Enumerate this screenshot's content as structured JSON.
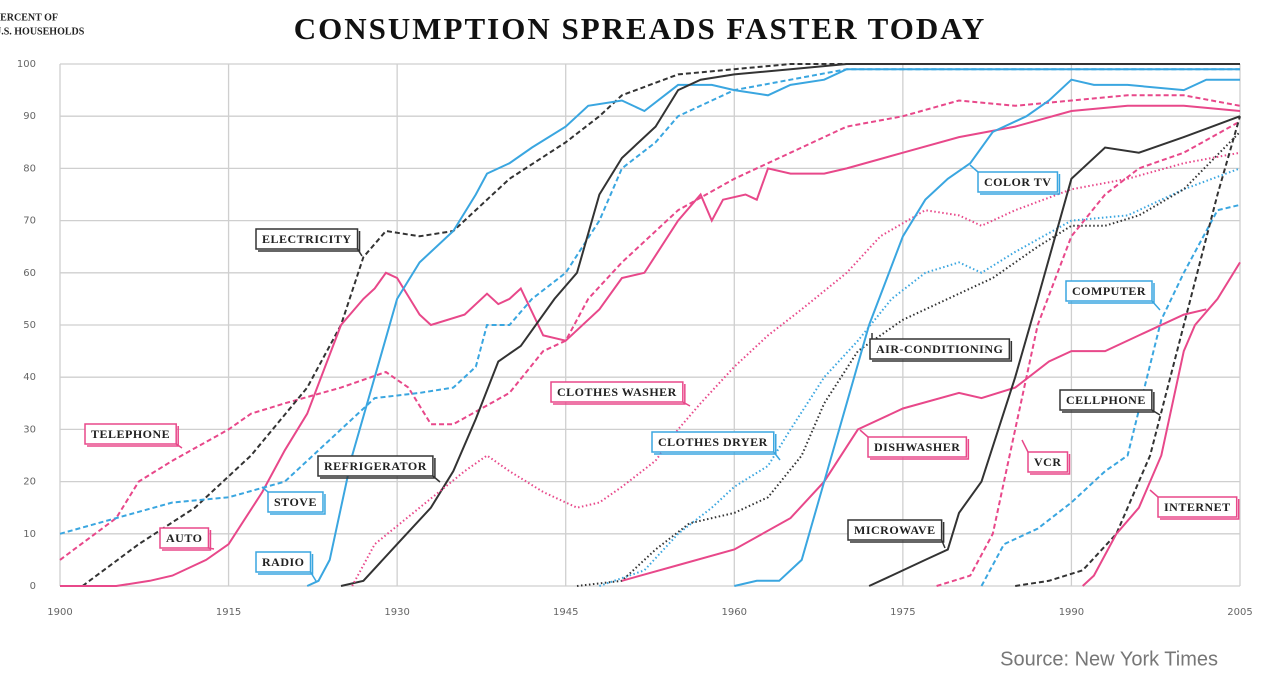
{
  "chart_data": {
    "type": "line",
    "title": "CONSUMPTION SPREADS FASTER TODAY",
    "ylabel": [
      "PERCENT OF",
      "U.S. HOUSEHOLDS"
    ],
    "source": "Source: New York Times",
    "xlim": [
      1900,
      2005
    ],
    "xticks": [
      1900,
      1915,
      1930,
      1945,
      1960,
      1975,
      1990,
      2005
    ],
    "ylim": [
      0,
      100
    ],
    "yticks": [
      0,
      10,
      20,
      30,
      40,
      50,
      60,
      70,
      80,
      90,
      100
    ],
    "grid": true,
    "series": [
      {
        "name": "TELEPHONE",
        "color": "#e8488a",
        "style": "dashed",
        "x": [
          1900,
          1905,
          1907,
          1910,
          1915,
          1917,
          1920,
          1925,
          1929,
          1931,
          1933,
          1935,
          1940,
          1943,
          1945,
          1947,
          1950,
          1955,
          1960,
          1965,
          1970,
          1975,
          1980,
          1985,
          1990,
          1995,
          2000,
          2005
        ],
        "values": [
          5,
          13,
          20,
          24,
          30,
          33,
          35,
          38,
          41,
          38,
          31,
          31,
          37,
          45,
          47,
          55,
          62,
          72,
          78,
          83,
          88,
          90,
          93,
          92,
          93,
          94,
          94,
          92
        ]
      },
      {
        "name": "ELECTRICITY",
        "color": "#333333",
        "style": "dashed",
        "x": [
          1902,
          1907,
          1912,
          1917,
          1922,
          1925,
          1927,
          1929,
          1932,
          1935,
          1940,
          1945,
          1948,
          1950,
          1955,
          1960,
          1965,
          1970,
          2005
        ],
        "values": [
          0,
          8,
          15,
          25,
          38,
          50,
          63,
          68,
          67,
          68,
          78,
          85,
          90,
          94,
          98,
          99,
          100,
          100,
          100
        ]
      },
      {
        "name": "AUTO",
        "color": "#e8488a",
        "style": "solid",
        "x": [
          1900,
          1905,
          1908,
          1910,
          1913,
          1915,
          1918,
          1920,
          1922,
          1925,
          1927,
          1928,
          1929,
          1930,
          1932,
          1933,
          1936,
          1938,
          1939,
          1940,
          1941,
          1943,
          1945,
          1948,
          1950,
          1952,
          1955,
          1957,
          1958,
          1959,
          1961,
          1962,
          1963,
          1965,
          1968,
          1970,
          1975,
          1980,
          1985,
          1990,
          1995,
          2000,
          2005
        ],
        "values": [
          0,
          0,
          1,
          2,
          5,
          8,
          18,
          26,
          33,
          50,
          55,
          57,
          60,
          59,
          52,
          50,
          52,
          56,
          54,
          55,
          57,
          48,
          47,
          53,
          59,
          60,
          70,
          75,
          70,
          74,
          75,
          74,
          80,
          79,
          79,
          80,
          83,
          86,
          88,
          91,
          92,
          92,
          91
        ]
      },
      {
        "name": "RADIO",
        "color": "#3aa6e0",
        "style": "solid",
        "x": [
          1922,
          1923,
          1924,
          1926,
          1928,
          1930,
          1932,
          1935,
          1937,
          1938,
          1940,
          1942,
          1945,
          1947,
          1950,
          1952,
          1955,
          1958,
          1960,
          1963,
          1965,
          1968,
          1970,
          1980,
          1990,
          2005
        ],
        "values": [
          0,
          1,
          5,
          25,
          40,
          55,
          62,
          68,
          75,
          79,
          81,
          84,
          88,
          92,
          93,
          91,
          96,
          96,
          95,
          94,
          96,
          97,
          99,
          99,
          99,
          99
        ]
      },
      {
        "name": "STOVE",
        "color": "#3aa6e0",
        "style": "dashed",
        "x": [
          1900,
          1905,
          1910,
          1915,
          1920,
          1925,
          1928,
          1932,
          1935,
          1937,
          1938,
          1940,
          1942,
          1945,
          1948,
          1950,
          1953,
          1955,
          1960,
          1965,
          1970,
          2005
        ],
        "values": [
          10,
          13,
          16,
          17,
          20,
          30,
          36,
          37,
          38,
          42,
          50,
          50,
          55,
          60,
          70,
          80,
          85,
          90,
          95,
          97,
          99,
          99
        ]
      },
      {
        "name": "REFRIGERATOR",
        "color": "#333333",
        "style": "solid",
        "x": [
          1925,
          1927,
          1930,
          1933,
          1935,
          1937,
          1939,
          1941,
          1944,
          1946,
          1948,
          1950,
          1953,
          1955,
          1957,
          1960,
          1965,
          1970,
          2005
        ],
        "values": [
          0,
          1,
          8,
          15,
          22,
          32,
          43,
          46,
          55,
          60,
          75,
          82,
          88,
          95,
          97,
          98,
          99,
          100,
          100
        ]
      },
      {
        "name": "CLOTHES WASHER",
        "color": "#e8488a",
        "style": "dotted",
        "x": [
          1926,
          1928,
          1932,
          1936,
          1938,
          1940,
          1943,
          1946,
          1948,
          1950,
          1953,
          1955,
          1957,
          1960,
          1963,
          1966,
          1970,
          1973,
          1977,
          1980,
          1982,
          1985,
          1990,
          1995,
          2000,
          2005
        ],
        "values": [
          0,
          8,
          15,
          22,
          25,
          22,
          18,
          15,
          16,
          19,
          24,
          30,
          35,
          42,
          48,
          53,
          60,
          67,
          72,
          71,
          69,
          72,
          76,
          78,
          81,
          83
        ]
      },
      {
        "name": "CLOTHES DRYER",
        "color": "#3aa6e0",
        "style": "dotted",
        "x": [
          1948,
          1952,
          1955,
          1958,
          1960,
          1963,
          1965,
          1968,
          1971,
          1974,
          1977,
          1980,
          1982,
          1985,
          1990,
          1995,
          2000,
          2005
        ],
        "values": [
          0,
          3,
          10,
          15,
          19,
          23,
          30,
          40,
          47,
          55,
          60,
          62,
          60,
          64,
          70,
          71,
          76,
          80
        ]
      },
      {
        "name": "AIR-CONDITIONING",
        "color": "#333333",
        "style": "dotted",
        "x": [
          1946,
          1950,
          1953,
          1956,
          1960,
          1963,
          1966,
          1968,
          1971,
          1975,
          1980,
          1983,
          1987,
          1990,
          1993,
          1996,
          2000,
          2005
        ],
        "values": [
          0,
          1,
          7,
          12,
          14,
          17,
          25,
          35,
          45,
          51,
          56,
          59,
          65,
          69,
          69,
          71,
          76,
          87
        ]
      },
      {
        "name": "DISHWASHER",
        "color": "#e8488a",
        "style": "solid",
        "x": [
          1950,
          1955,
          1960,
          1965,
          1968,
          1971,
          1975,
          1980,
          1982,
          1985,
          1988,
          1990,
          1993,
          1996,
          2000,
          2002
        ],
        "values": [
          1,
          4,
          7,
          13,
          20,
          30,
          34,
          37,
          36,
          38,
          43,
          45,
          45,
          48,
          52,
          53
        ]
      },
      {
        "name": "COLOR TV",
        "color": "#3aa6e0",
        "style": "solid",
        "x": [
          1960,
          1962,
          1964,
          1966,
          1968,
          1970,
          1972,
          1975,
          1977,
          1979,
          1981,
          1983,
          1986,
          1988,
          1990,
          1992,
          1995,
          2000,
          2002,
          2005
        ],
        "values": [
          0,
          1,
          1,
          5,
          20,
          35,
          50,
          67,
          74,
          78,
          81,
          87,
          90,
          93,
          97,
          96,
          96,
          95,
          97,
          97
        ]
      },
      {
        "name": "MICROWAVE",
        "color": "#333333",
        "style": "solid",
        "x": [
          1972,
          1974,
          1977,
          1979,
          1980,
          1982,
          1985,
          1987,
          1990,
          1993,
          1996,
          2000,
          2005
        ],
        "values": [
          0,
          2,
          5,
          7,
          14,
          20,
          40,
          55,
          78,
          84,
          83,
          86,
          90
        ]
      },
      {
        "name": "VCR",
        "color": "#e8488a",
        "style": "dashed",
        "x": [
          1978,
          1981,
          1983,
          1985,
          1987,
          1990,
          1993,
          1996,
          2000,
          2005
        ],
        "values": [
          0,
          2,
          10,
          30,
          50,
          67,
          75,
          80,
          83,
          89
        ]
      },
      {
        "name": "COMPUTER",
        "color": "#3aa6e0",
        "style": "dashed",
        "x": [
          1982,
          1984,
          1987,
          1990,
          1993,
          1995,
          1998,
          2000,
          2003,
          2005
        ],
        "values": [
          0,
          8,
          11,
          16,
          22,
          25,
          51,
          60,
          72,
          73
        ]
      },
      {
        "name": "CELLPHONE",
        "color": "#333333",
        "style": "dashed",
        "x": [
          1985,
          1988,
          1991,
          1994,
          1997,
          2000,
          2003,
          2005
        ],
        "values": [
          0,
          1,
          3,
          10,
          25,
          50,
          75,
          90
        ]
      },
      {
        "name": "INTERNET",
        "color": "#e8488a",
        "style": "solid",
        "x": [
          1991,
          1992,
          1994,
          1996,
          1998,
          2000,
          2001,
          2003,
          2005
        ],
        "values": [
          0,
          2,
          10,
          15,
          25,
          45,
          50,
          55,
          62
        ]
      }
    ]
  }
}
